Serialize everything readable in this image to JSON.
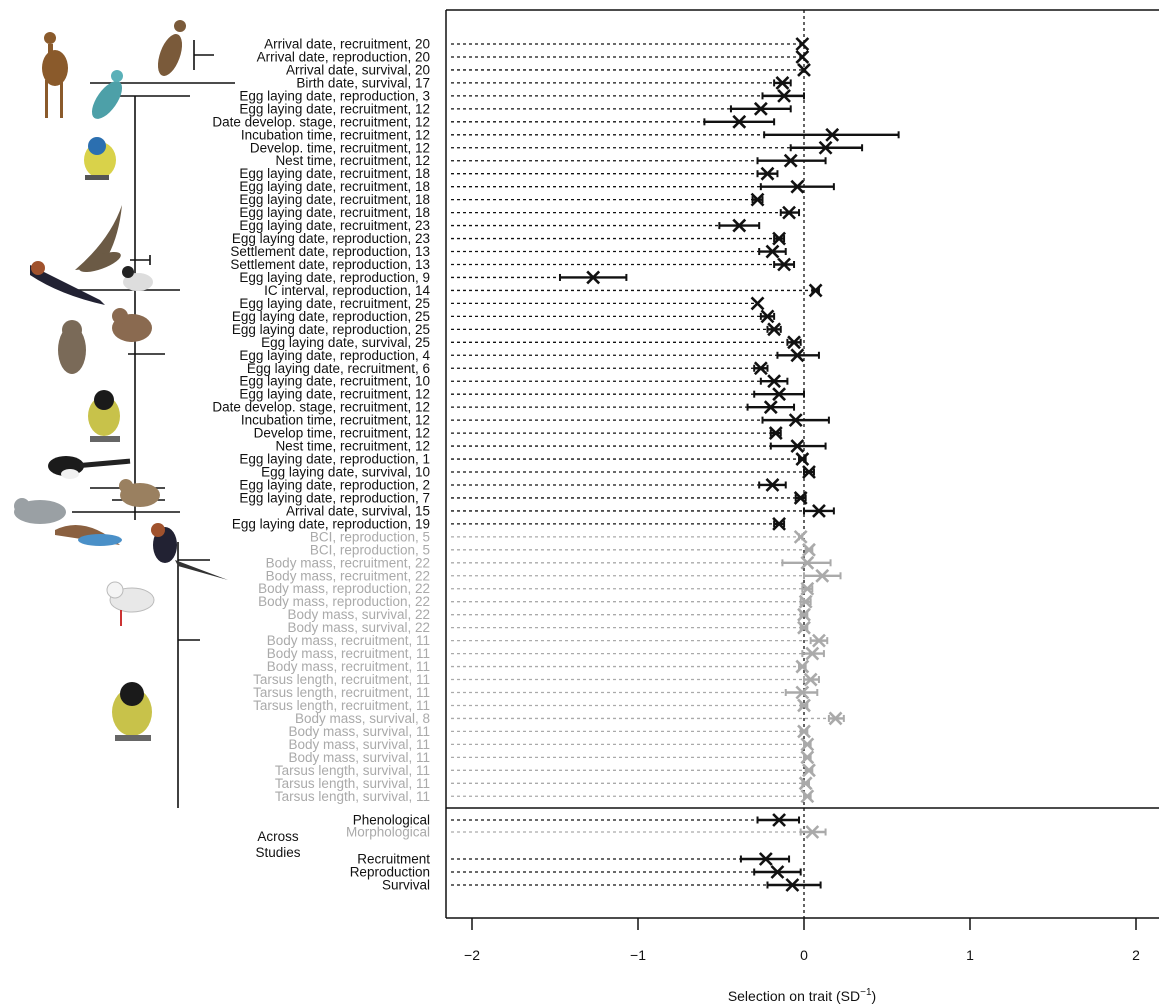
{
  "chart_data": {
    "type": "forest",
    "xlabel": "Selection on trait (SD",
    "xlabel_sup": "−1",
    "xlabel_end": ")",
    "xlim": [
      -2.2,
      2.2
    ],
    "xticks": [
      -2,
      -1,
      0,
      1,
      2
    ],
    "xtick_labels": [
      "−2",
      "−1",
      "0",
      "1",
      "2"
    ],
    "reference_line": 0,
    "colors": {
      "phenological": "#111111",
      "morphological": "#aaaaaa"
    },
    "rows": [
      {
        "label": "Arrival date, recruitment, 20",
        "group": "phenological",
        "est": -0.01,
        "lo": -0.01,
        "hi": -0.01
      },
      {
        "label": "Arrival date, reproduction, 20",
        "group": "phenological",
        "est": -0.01,
        "lo": -0.01,
        "hi": -0.01
      },
      {
        "label": "Arrival date, survival, 20",
        "group": "phenological",
        "est": 0.0,
        "lo": 0.0,
        "hi": 0.0
      },
      {
        "label": "Birth date, survival, 17",
        "group": "phenological",
        "est": -0.13,
        "lo": -0.18,
        "hi": -0.08
      },
      {
        "label": "Egg laying date, reproduction, 3",
        "group": "phenological",
        "est": -0.12,
        "lo": -0.25,
        "hi": 0.0
      },
      {
        "label": "Egg laying date, recruitment, 12",
        "group": "phenological",
        "est": -0.26,
        "lo": -0.44,
        "hi": -0.08
      },
      {
        "label": "Date develop. stage, recruitment, 12",
        "group": "phenological",
        "est": -0.39,
        "lo": -0.6,
        "hi": -0.18
      },
      {
        "label": "Incubation time, recruitment, 12",
        "group": "phenological",
        "est": 0.17,
        "lo": -0.24,
        "hi": 0.57
      },
      {
        "label": "Develop. time, recruitment, 12",
        "group": "phenological",
        "est": 0.13,
        "lo": -0.08,
        "hi": 0.35
      },
      {
        "label": "Nest time, recruitment, 12",
        "group": "phenological",
        "est": -0.08,
        "lo": -0.28,
        "hi": 0.13
      },
      {
        "label": "Egg laying date, recruitment, 18",
        "group": "phenological",
        "est": -0.22,
        "lo": -0.28,
        "hi": -0.16
      },
      {
        "label": "Egg laying date, recruitment, 18",
        "group": "phenological",
        "est": -0.04,
        "lo": -0.26,
        "hi": 0.18
      },
      {
        "label": "Egg laying date, recruitment, 18",
        "group": "phenological",
        "est": -0.28,
        "lo": -0.31,
        "hi": -0.25
      },
      {
        "label": "Egg laying date, recruitment, 18",
        "group": "phenological",
        "est": -0.09,
        "lo": -0.14,
        "hi": -0.03
      },
      {
        "label": "Egg laying date, recruitment, 23",
        "group": "phenological",
        "est": -0.39,
        "lo": -0.51,
        "hi": -0.27
      },
      {
        "label": "Egg laying date, reproduction, 23",
        "group": "phenological",
        "est": -0.15,
        "lo": -0.18,
        "hi": -0.12
      },
      {
        "label": "Settlement date, reproduction, 13",
        "group": "phenological",
        "est": -0.19,
        "lo": -0.27,
        "hi": -0.11
      },
      {
        "label": "Settlement date, reproduction, 13",
        "group": "phenological",
        "est": -0.12,
        "lo": -0.18,
        "hi": -0.06
      },
      {
        "label": "Egg laying date, reproduction, 9",
        "group": "phenological",
        "est": -1.27,
        "lo": -1.47,
        "hi": -1.07
      },
      {
        "label": "IC interval, reproduction, 14",
        "group": "phenological",
        "est": 0.07,
        "lo": 0.05,
        "hi": 0.09
      },
      {
        "label": "Egg laying date, recruitment, 25",
        "group": "phenological",
        "est": -0.28,
        "lo": -0.28,
        "hi": -0.28
      },
      {
        "label": "Egg laying date, reproduction, 25",
        "group": "phenological",
        "est": -0.22,
        "lo": -0.26,
        "hi": -0.18
      },
      {
        "label": "Egg laying date, reproduction, 25",
        "group": "phenological",
        "est": -0.18,
        "lo": -0.22,
        "hi": -0.14
      },
      {
        "label": "Egg laying date, survival, 25",
        "group": "phenological",
        "est": -0.06,
        "lo": -0.1,
        "hi": -0.02
      },
      {
        "label": "Egg laying date, reproduction, 4",
        "group": "phenological",
        "est": -0.04,
        "lo": -0.16,
        "hi": 0.09
      },
      {
        "label": "Egg laying date, recruitment, 6",
        "group": "phenological",
        "est": -0.26,
        "lo": -0.3,
        "hi": -0.22
      },
      {
        "label": "Egg laying date, recruitment, 10",
        "group": "phenological",
        "est": -0.18,
        "lo": -0.26,
        "hi": -0.1
      },
      {
        "label": "Egg laying date, recruitment, 12",
        "group": "phenological",
        "est": -0.15,
        "lo": -0.3,
        "hi": 0.0
      },
      {
        "label": "Date develop. stage, recruitment, 12",
        "group": "phenological",
        "est": -0.2,
        "lo": -0.34,
        "hi": -0.06
      },
      {
        "label": "Incubation time, recruitment, 12",
        "group": "phenological",
        "est": -0.05,
        "lo": -0.25,
        "hi": 0.15
      },
      {
        "label": "Develop time, recruitment, 12",
        "group": "phenological",
        "est": -0.17,
        "lo": -0.2,
        "hi": -0.14
      },
      {
        "label": "Nest time, recruitment, 12",
        "group": "phenological",
        "est": -0.04,
        "lo": -0.2,
        "hi": 0.13
      },
      {
        "label": "Egg laying date, reproduction, 1",
        "group": "phenological",
        "est": -0.01,
        "lo": -0.03,
        "hi": 0.01
      },
      {
        "label": "Egg laying date, survival, 10",
        "group": "phenological",
        "est": 0.03,
        "lo": 0.0,
        "hi": 0.06
      },
      {
        "label": "Egg laying date, reproduction, 2",
        "group": "phenological",
        "est": -0.19,
        "lo": -0.27,
        "hi": -0.11
      },
      {
        "label": "Egg laying date, reproduction, 7",
        "group": "phenological",
        "est": -0.02,
        "lo": -0.05,
        "hi": 0.01
      },
      {
        "label": "Arrival date, survival, 15",
        "group": "phenological",
        "est": 0.09,
        "lo": 0.0,
        "hi": 0.18
      },
      {
        "label": "Egg laying date, reproduction, 19",
        "group": "phenological",
        "est": -0.15,
        "lo": -0.18,
        "hi": -0.12
      },
      {
        "label": "BCI, reproduction, 5",
        "group": "morphological",
        "est": -0.02,
        "lo": -0.03,
        "hi": -0.01
      },
      {
        "label": "BCI, reproduction, 5",
        "group": "morphological",
        "est": 0.03,
        "lo": 0.01,
        "hi": 0.05
      },
      {
        "label": "Body mass, recruitment, 22",
        "group": "morphological",
        "est": 0.02,
        "lo": -0.13,
        "hi": 0.16
      },
      {
        "label": "Body mass, recruitment, 22",
        "group": "morphological",
        "est": 0.11,
        "lo": 0.0,
        "hi": 0.22
      },
      {
        "label": "Body mass, reproduction, 22",
        "group": "morphological",
        "est": 0.02,
        "lo": -0.01,
        "hi": 0.05
      },
      {
        "label": "Body mass, reproduction, 22",
        "group": "morphological",
        "est": 0.01,
        "lo": -0.02,
        "hi": 0.04
      },
      {
        "label": "Body mass, survival, 22",
        "group": "morphological",
        "est": 0.0,
        "lo": -0.02,
        "hi": 0.02
      },
      {
        "label": "Body mass, survival, 22",
        "group": "morphological",
        "est": 0.0,
        "lo": -0.02,
        "hi": 0.02
      },
      {
        "label": "Body mass, recruitment, 11",
        "group": "morphological",
        "est": 0.09,
        "lo": 0.04,
        "hi": 0.14
      },
      {
        "label": "Body mass, recruitment, 11",
        "group": "morphological",
        "est": 0.05,
        "lo": -0.01,
        "hi": 0.12
      },
      {
        "label": "Body mass, recruitment, 11",
        "group": "morphological",
        "est": -0.01,
        "lo": -0.03,
        "hi": 0.01
      },
      {
        "label": "Tarsus length, recruitment, 11",
        "group": "morphological",
        "est": 0.04,
        "lo": 0.0,
        "hi": 0.09
      },
      {
        "label": "Tarsus length, recruitment, 11",
        "group": "morphological",
        "est": -0.01,
        "lo": -0.11,
        "hi": 0.08
      },
      {
        "label": "Tarsus length, recruitment, 11",
        "group": "morphological",
        "est": 0.0,
        "lo": -0.02,
        "hi": 0.02
      },
      {
        "label": "Body mass, survival, 8",
        "group": "morphological",
        "est": 0.19,
        "lo": 0.15,
        "hi": 0.24
      },
      {
        "label": "Body mass, survival, 11",
        "group": "morphological",
        "est": 0.0,
        "lo": -0.02,
        "hi": 0.02
      },
      {
        "label": "Body mass, survival, 11",
        "group": "morphological",
        "est": 0.02,
        "lo": 0.0,
        "hi": 0.04
      },
      {
        "label": "Body mass, survival, 11",
        "group": "morphological",
        "est": 0.02,
        "lo": 0.0,
        "hi": 0.04
      },
      {
        "label": "Tarsus length, survival, 11",
        "group": "morphological",
        "est": 0.03,
        "lo": 0.01,
        "hi": 0.05
      },
      {
        "label": "Tarsus length, survival, 11",
        "group": "morphological",
        "est": 0.01,
        "lo": -0.01,
        "hi": 0.03
      },
      {
        "label": "Tarsus length, survival, 11",
        "group": "morphological",
        "est": 0.02,
        "lo": 0.0,
        "hi": 0.04
      }
    ],
    "across_studies_label": [
      "Across",
      "Studies"
    ],
    "summary_rows": [
      {
        "label": "Phenological",
        "group": "phenological",
        "est": -0.15,
        "lo": -0.28,
        "hi": -0.03
      },
      {
        "label": "Morphological",
        "group": "morphological",
        "est": 0.05,
        "lo": -0.02,
        "hi": 0.13
      },
      {
        "label": "Recruitment",
        "group": "phenological",
        "est": -0.23,
        "lo": -0.38,
        "hi": -0.09
      },
      {
        "label": "Reproduction",
        "group": "phenological",
        "est": -0.16,
        "lo": -0.3,
        "hi": -0.02
      },
      {
        "label": "Survival",
        "group": "phenological",
        "est": -0.07,
        "lo": -0.22,
        "hi": 0.1
      }
    ]
  }
}
